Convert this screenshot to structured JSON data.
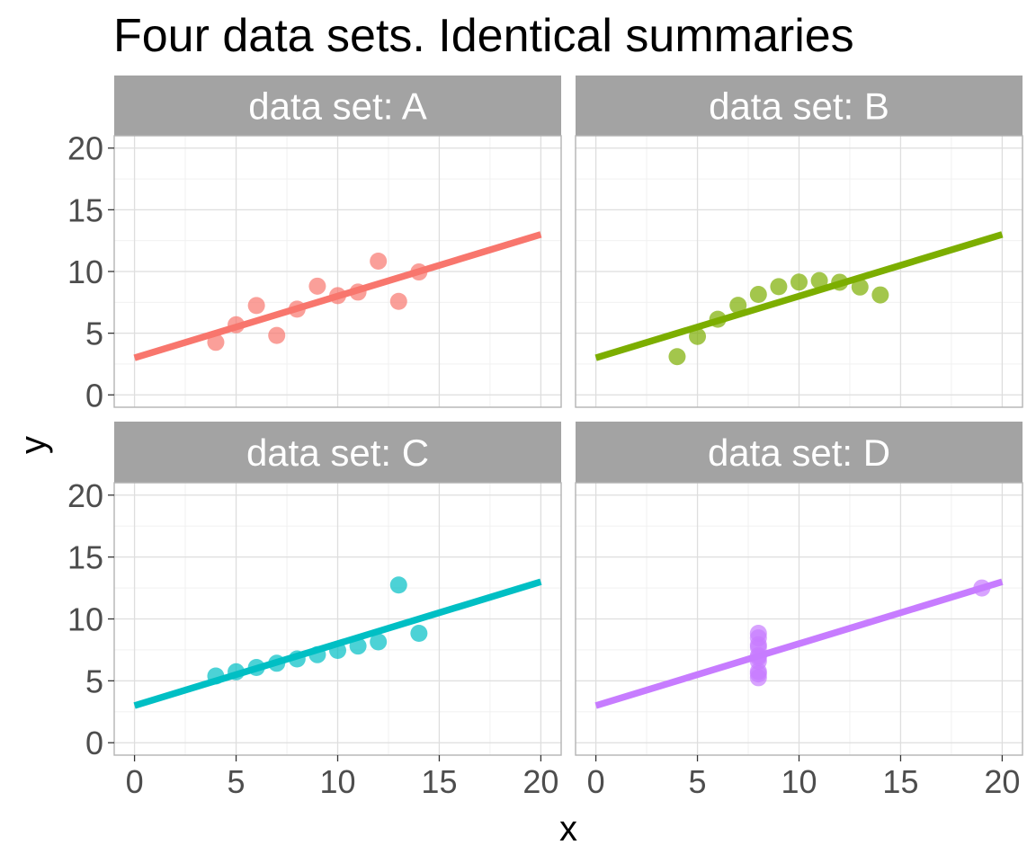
{
  "chart_data": {
    "type": "scatter",
    "title": "Four data sets. Identical summaries",
    "xlabel": "x",
    "ylabel": "y",
    "xlim": [
      -1,
      21
    ],
    "ylim": [
      -1,
      21
    ],
    "xticks": [
      0,
      5,
      10,
      15,
      20
    ],
    "yticks": [
      0,
      5,
      10,
      15,
      20
    ],
    "grid": true,
    "legend": "none",
    "fit_line": {
      "intercept": 3.0,
      "slope": 0.5,
      "x_range": [
        0,
        20
      ]
    },
    "panels": [
      {
        "label": "data set: A",
        "color": "#F8766D",
        "points": [
          [
            10,
            8.04
          ],
          [
            8,
            6.95
          ],
          [
            13,
            7.58
          ],
          [
            9,
            8.81
          ],
          [
            11,
            8.33
          ],
          [
            14,
            9.96
          ],
          [
            6,
            7.24
          ],
          [
            4,
            4.26
          ],
          [
            12,
            10.84
          ],
          [
            7,
            4.82
          ],
          [
            5,
            5.68
          ]
        ]
      },
      {
        "label": "data set: B",
        "color": "#7CAE00",
        "points": [
          [
            10,
            9.14
          ],
          [
            8,
            8.14
          ],
          [
            13,
            8.74
          ],
          [
            9,
            8.77
          ],
          [
            11,
            9.26
          ],
          [
            14,
            8.1
          ],
          [
            6,
            6.13
          ],
          [
            4,
            3.1
          ],
          [
            12,
            9.13
          ],
          [
            7,
            7.26
          ],
          [
            5,
            4.74
          ]
        ]
      },
      {
        "label": "data set: C",
        "color": "#00BFC4",
        "points": [
          [
            10,
            7.46
          ],
          [
            8,
            6.77
          ],
          [
            13,
            12.74
          ],
          [
            9,
            7.11
          ],
          [
            11,
            7.81
          ],
          [
            14,
            8.84
          ],
          [
            6,
            6.08
          ],
          [
            4,
            5.39
          ],
          [
            12,
            8.15
          ],
          [
            7,
            6.42
          ],
          [
            5,
            5.73
          ]
        ]
      },
      {
        "label": "data set: D",
        "color": "#C77CFF",
        "points": [
          [
            8,
            6.58
          ],
          [
            8,
            5.76
          ],
          [
            8,
            7.71
          ],
          [
            8,
            8.84
          ],
          [
            8,
            8.47
          ],
          [
            8,
            7.04
          ],
          [
            8,
            5.25
          ],
          [
            19,
            12.5
          ],
          [
            8,
            5.56
          ],
          [
            8,
            7.91
          ],
          [
            8,
            6.89
          ]
        ]
      }
    ]
  }
}
